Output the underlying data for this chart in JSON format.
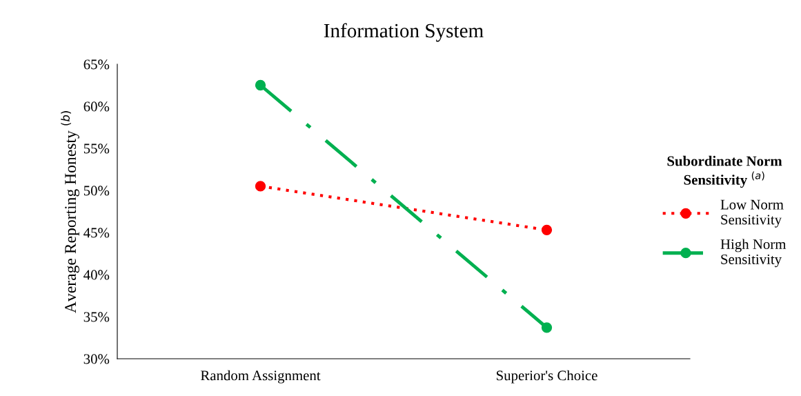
{
  "chart_data": {
    "type": "line",
    "title": "Information System",
    "categories": [
      "Random Assignment",
      "Superior's Choice"
    ],
    "ylabel": "Average Reporting Honesty $^{(b)}$",
    "legend_title": "Subordinate Norm\nSensitivity $^{(a)}$",
    "series": [
      {
        "name": "Low Norm\nSensitivity",
        "color": "#ff0000",
        "values": [
          50.5,
          45.3
        ],
        "line_style": "dotted"
      },
      {
        "name": "High Norm\nSensitivity",
        "color": "#00b050",
        "values": [
          62.5,
          33.7
        ],
        "line_style": "dashdot"
      }
    ],
    "ylim": [
      30,
      65
    ],
    "yticks": [
      {
        "value": 30,
        "label": "30%"
      },
      {
        "value": 35,
        "label": "35%"
      },
      {
        "value": 40,
        "label": "40%"
      },
      {
        "value": 45,
        "label": "45%"
      },
      {
        "value": 50,
        "label": "50%"
      },
      {
        "value": 55,
        "label": "55%"
      },
      {
        "value": 60,
        "label": "60%"
      },
      {
        "value": 65,
        "label": "65%"
      }
    ],
    "marker": "circle",
    "legend": "right",
    "grid": false
  }
}
